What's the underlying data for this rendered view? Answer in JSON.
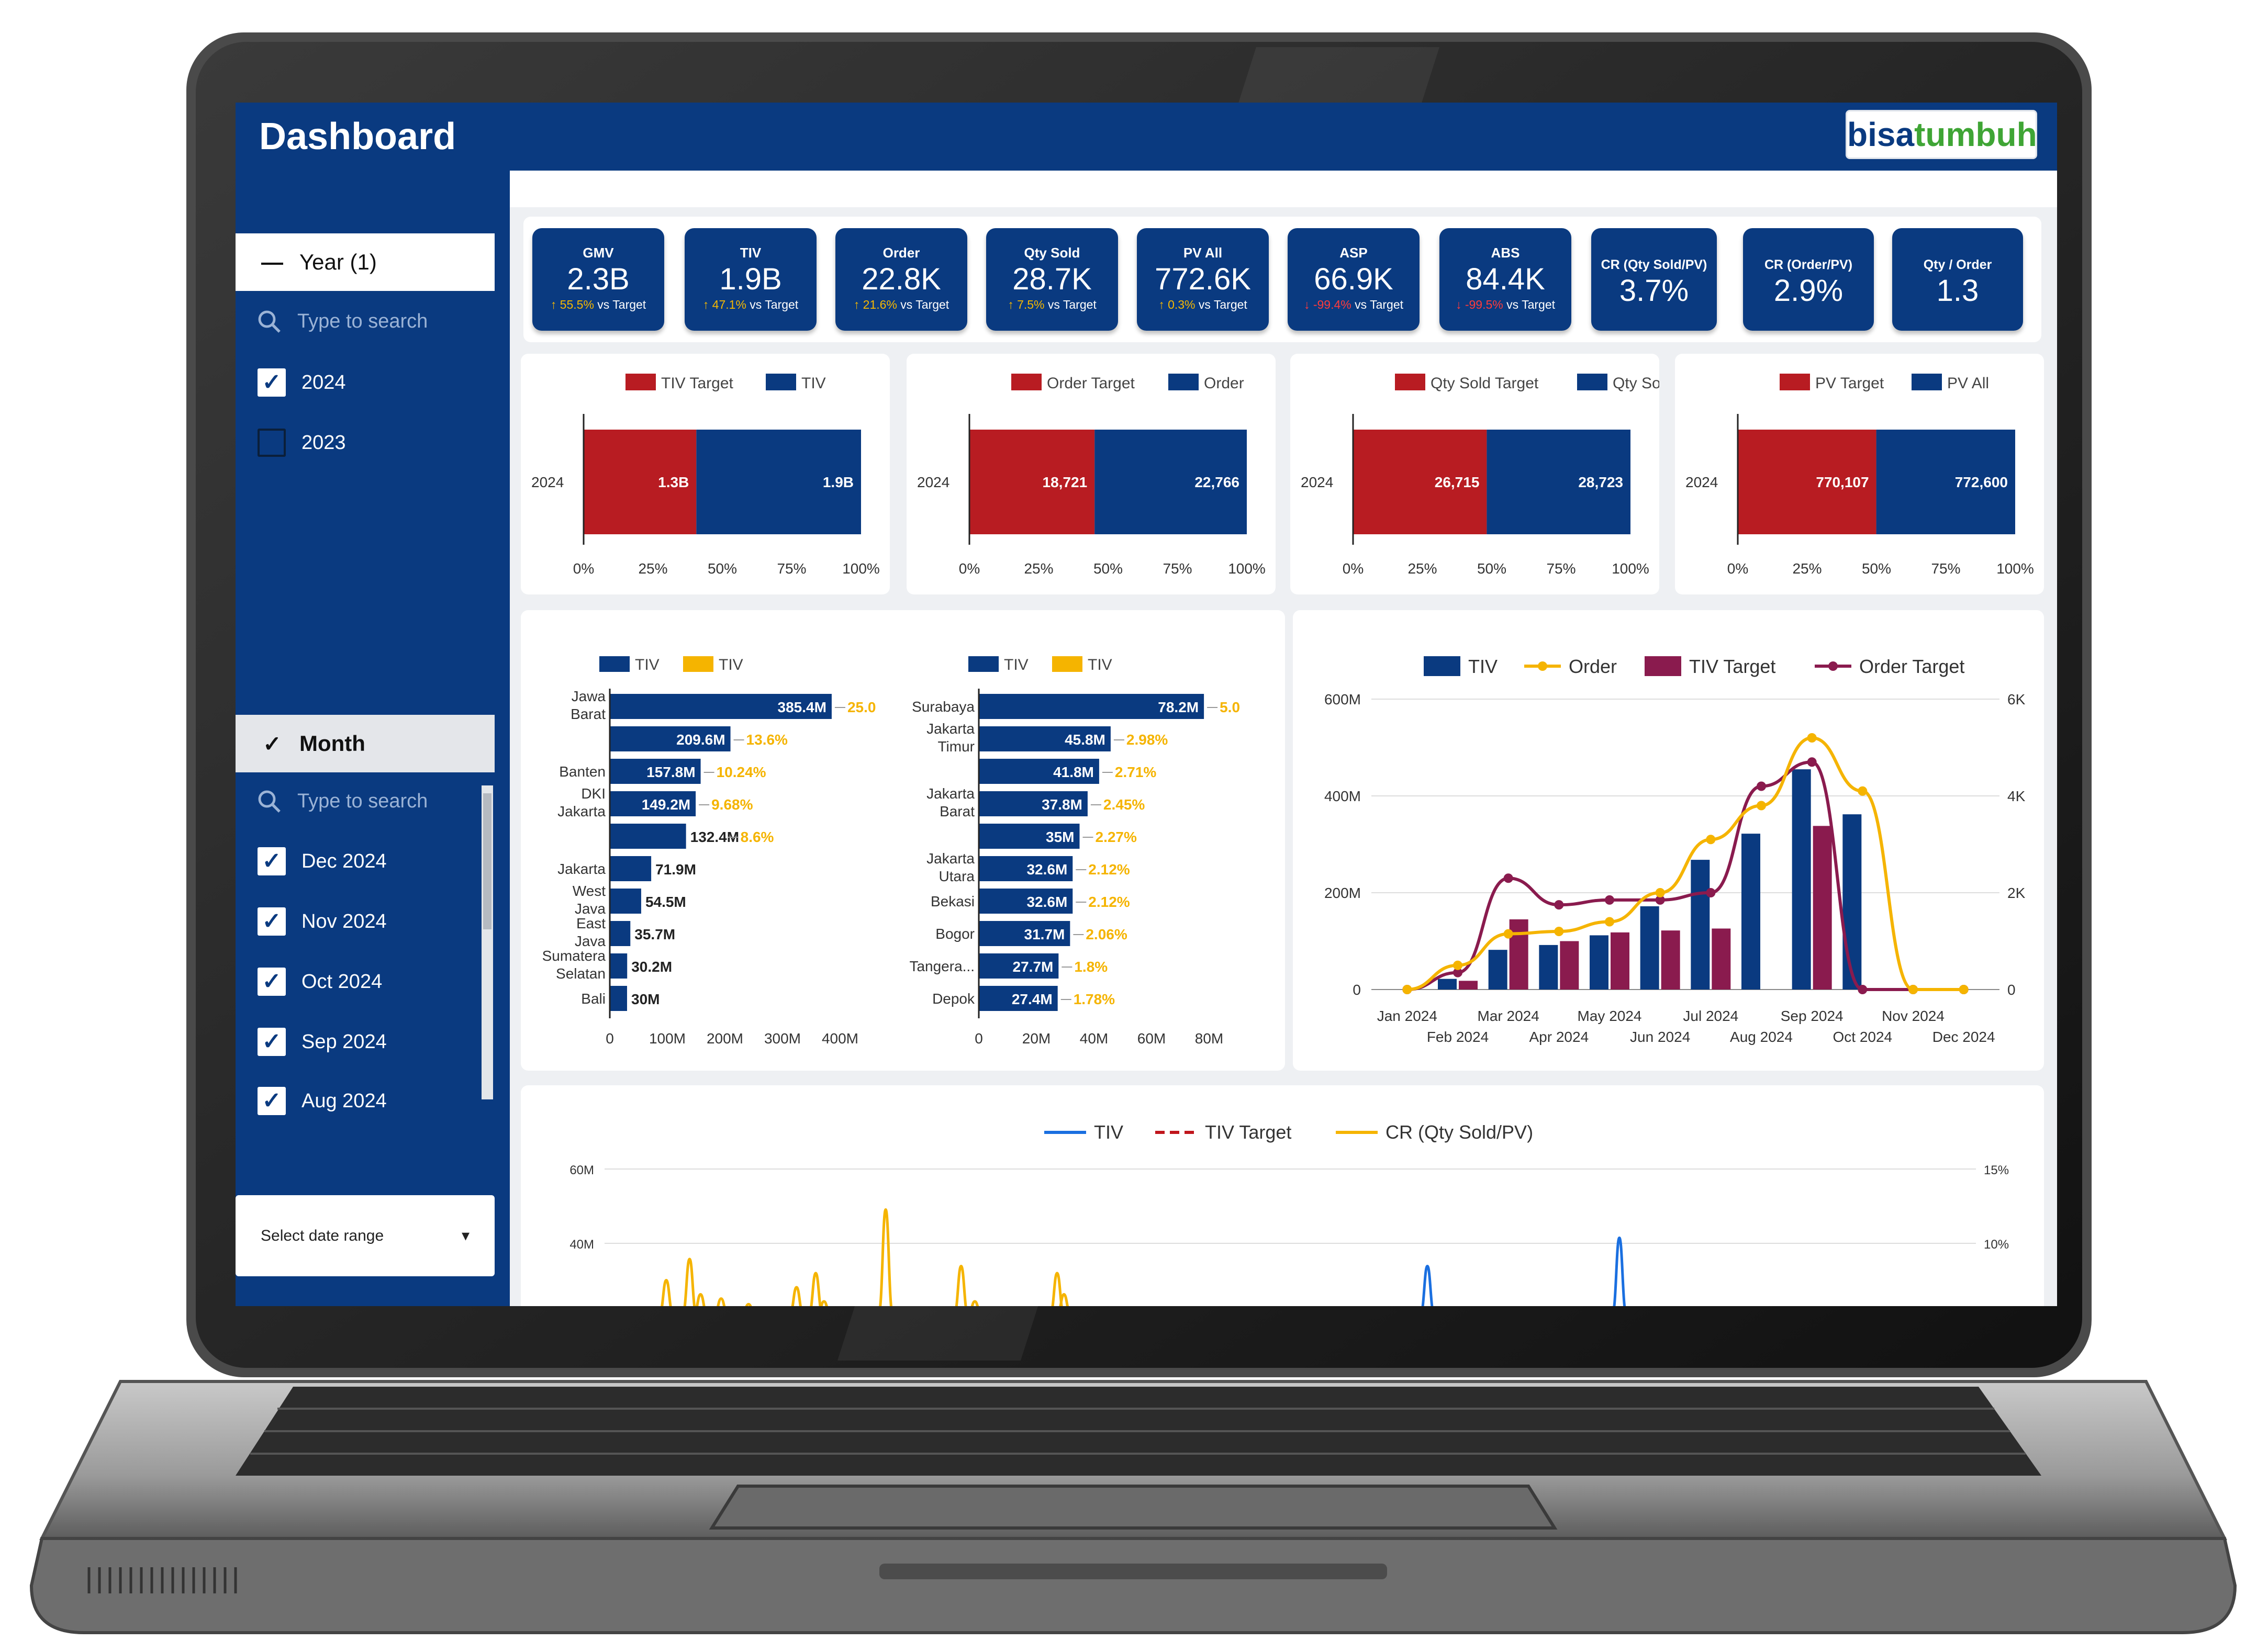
{
  "app": {
    "title": "Dashboard",
    "logo_part1": "bisa",
    "logo_part2": "tumbuh"
  },
  "colors": {
    "navy": "#0a3a80",
    "red": "#b81c22",
    "orange": "#f5b400",
    "maroon": "#8a1b4e",
    "blue_line": "#1a6fe0"
  },
  "filters": {
    "year": {
      "label": "Year",
      "count": "(1)",
      "search_placeholder": "Type to search",
      "options": [
        {
          "label": "2024",
          "checked": true
        },
        {
          "label": "2023",
          "checked": false
        }
      ]
    },
    "month": {
      "label": "Month",
      "search_placeholder": "Type to search",
      "options": [
        {
          "label": "Dec 2024",
          "checked": true
        },
        {
          "label": "Nov 2024",
          "checked": true
        },
        {
          "label": "Oct 2024",
          "checked": true
        },
        {
          "label": "Sep 2024",
          "checked": true
        },
        {
          "label": "Aug 2024",
          "checked": true
        }
      ]
    },
    "date_range": {
      "label": "Select date range"
    }
  },
  "kpis": [
    {
      "label": "GMV",
      "value": "2.3B",
      "delta": "55.5%",
      "dir": "up",
      "vs": "vs Target"
    },
    {
      "label": "TIV",
      "value": "1.9B",
      "delta": "47.1%",
      "dir": "up",
      "vs": "vs Target"
    },
    {
      "label": "Order",
      "value": "22.8K",
      "delta": "21.6%",
      "dir": "up",
      "vs": "vs Target"
    },
    {
      "label": "Qty Sold",
      "value": "28.7K",
      "delta": "7.5%",
      "dir": "up",
      "vs": "vs Target"
    },
    {
      "label": "PV All",
      "value": "772.6K",
      "delta": "0.3%",
      "dir": "up",
      "vs": "vs Target"
    },
    {
      "label": "ASP",
      "value": "66.9K",
      "delta": "-99.4%",
      "dir": "down",
      "vs": "vs Target"
    },
    {
      "label": "ABS",
      "value": "84.4K",
      "delta": "-99.5%",
      "dir": "down",
      "vs": "vs Target"
    },
    {
      "label": "CR (Qty Sold/PV)",
      "value": "3.7%"
    },
    {
      "label": "CR (Order/PV)",
      "value": "2.9%"
    },
    {
      "label": "Qty / Order",
      "value": "1.3"
    }
  ],
  "chart_data": [
    {
      "type": "bar",
      "orientation": "horizontal",
      "stacked_percent": true,
      "categories": [
        "2024"
      ],
      "series": [
        {
          "name": "TIV Target",
          "values": [
            1.3
          ],
          "label": "1.3B"
        },
        {
          "name": "TIV",
          "values": [
            1.9
          ],
          "label": "1.9B"
        }
      ],
      "xticks": [
        "0%",
        "25%",
        "50%",
        "75%",
        "100%"
      ]
    },
    {
      "type": "bar",
      "orientation": "horizontal",
      "stacked_percent": true,
      "categories": [
        "2024"
      ],
      "series": [
        {
          "name": "Order Target",
          "values": [
            18721
          ],
          "label": "18,721"
        },
        {
          "name": "Order",
          "values": [
            22766
          ],
          "label": "22,766"
        }
      ],
      "xticks": [
        "0%",
        "25%",
        "50%",
        "75%",
        "100%"
      ]
    },
    {
      "type": "bar",
      "orientation": "horizontal",
      "stacked_percent": true,
      "categories": [
        "2024"
      ],
      "series": [
        {
          "name": "Qty Sold Target",
          "values": [
            26715
          ],
          "label": "26,715"
        },
        {
          "name": "Qty Sold",
          "values": [
            28723
          ],
          "label": "28,723"
        }
      ],
      "xticks": [
        "0%",
        "25%",
        "50%",
        "75%",
        "100%"
      ]
    },
    {
      "type": "bar",
      "orientation": "horizontal",
      "stacked_percent": true,
      "categories": [
        "2024"
      ],
      "series": [
        {
          "name": "PV Target",
          "values": [
            770107
          ],
          "label": "770,107"
        },
        {
          "name": "PV All",
          "values": [
            772600
          ],
          "label": "772,600"
        }
      ],
      "xticks": [
        "0%",
        "25%",
        "50%",
        "75%",
        "100%"
      ]
    },
    {
      "type": "bar",
      "orientation": "horizontal",
      "legend": [
        "TIV",
        "TIV"
      ],
      "categories": [
        "Jawa Barat",
        "",
        "Banten",
        "DKI Jakarta",
        "",
        "Jakarta",
        "West Java",
        "East Java",
        "Sumatera Selatan",
        "Bali"
      ],
      "values": [
        385.4,
        209.6,
        157.8,
        149.2,
        132.4,
        71.9,
        54.5,
        35.7,
        30.2,
        30
      ],
      "bar_labels": [
        "385.4M",
        "209.6M",
        "157.8M",
        "149.2M",
        "132.4M",
        "71.9M",
        "54.5M",
        "35.7M",
        "30.2M",
        "30M"
      ],
      "pct_labels": [
        "25.0",
        "13.6%",
        "10.24%",
        "9.68%",
        "8.6%",
        "",
        "",
        "",
        "",
        ""
      ],
      "xticks": [
        "0",
        "100M",
        "200M",
        "300M",
        "400M"
      ],
      "xlim": [
        0,
        400
      ]
    },
    {
      "type": "bar",
      "orientation": "horizontal",
      "legend": [
        "TIV",
        "TIV"
      ],
      "categories": [
        "Surabaya",
        "Jakarta Timur",
        "",
        "Jakarta Barat",
        "",
        "Jakarta Utara",
        "Bekasi",
        "Bogor",
        "Tangera...",
        "Depok"
      ],
      "values": [
        78.2,
        45.8,
        41.8,
        37.8,
        35,
        32.6,
        32.6,
        31.7,
        27.7,
        27.4
      ],
      "bar_labels": [
        "78.2M",
        "45.8M",
        "41.8M",
        "37.8M",
        "35M",
        "32.6M",
        "32.6M",
        "31.7M",
        "27.7M",
        "27.4M"
      ],
      "pct_labels": [
        "5.0",
        "2.98%",
        "2.71%",
        "2.45%",
        "2.27%",
        "2.12%",
        "2.12%",
        "2.06%",
        "1.8%",
        "1.78%"
      ],
      "xticks": [
        "0",
        "20M",
        "40M",
        "60M",
        "80M"
      ],
      "xlim": [
        0,
        80
      ]
    },
    {
      "type": "combo",
      "x": [
        "Jan 2024",
        "Feb 2024",
        "Mar 2024",
        "Apr 2024",
        "May 2024",
        "Jun 2024",
        "Jul 2024",
        "Aug 2024",
        "Sep 2024",
        "Oct 2024",
        "Nov 2024",
        "Dec 2024"
      ],
      "x_labels_top": [
        "Jan 2024",
        "Mar 2024",
        "May 2024",
        "Jul 2024",
        "Sep 2024",
        "Nov 2024"
      ],
      "x_labels_bottom": [
        "Feb 2024",
        "Apr 2024",
        "Jun 2024",
        "Aug 2024",
        "Oct 2024",
        "Dec 2024"
      ],
      "series": [
        {
          "name": "TIV",
          "kind": "bar",
          "axis": "left",
          "values": [
            0,
            22,
            82,
            92,
            112,
            172,
            268,
            322,
            455,
            362,
            0,
            0
          ]
        },
        {
          "name": "TIV Target",
          "kind": "bar",
          "axis": "left",
          "values": [
            0,
            18,
            145,
            100,
            118,
            122,
            126,
            0,
            338,
            0,
            0,
            0
          ]
        },
        {
          "name": "Order",
          "kind": "line",
          "axis": "right",
          "values": [
            0,
            0.5,
            1.15,
            1.2,
            1.4,
            2.0,
            3.1,
            3.8,
            5.2,
            4.1,
            0,
            0
          ]
        },
        {
          "name": "Order Target",
          "kind": "line",
          "axis": "right",
          "values": [
            0,
            0.35,
            2.3,
            1.75,
            1.85,
            1.85,
            2.0,
            4.2,
            4.7,
            0,
            0,
            0
          ]
        }
      ],
      "yticks_left": [
        "0",
        "200M",
        "400M",
        "600M"
      ],
      "ylim_left": [
        0,
        600
      ],
      "yticks_right": [
        "0",
        "2K",
        "4K",
        "6K"
      ],
      "ylim_right": [
        0,
        6000
      ]
    },
    {
      "type": "line",
      "legend": [
        "TIV",
        "TIV Target",
        "CR (Qty Sold/PV)"
      ],
      "yticks_left": [
        "40M",
        "60M"
      ],
      "yticks_right": [
        "10%",
        "15%"
      ],
      "series": [
        {
          "name": "TIV",
          "spikes_x": [
            0.6,
            0.74
          ],
          "spikes_height": [
            0.35,
            0.55
          ]
        },
        {
          "name": "CR (Qty Sold/PV)",
          "spikes_x": [
            0.045,
            0.062,
            0.07,
            0.085,
            0.105,
            0.14,
            0.154,
            0.16,
            0.205,
            0.26,
            0.27,
            0.33,
            0.335
          ],
          "spikes_height": [
            0.25,
            0.4,
            0.15,
            0.12,
            0.08,
            0.2,
            0.3,
            0.1,
            0.75,
            0.35,
            0.1,
            0.3,
            0.15
          ]
        }
      ]
    }
  ]
}
